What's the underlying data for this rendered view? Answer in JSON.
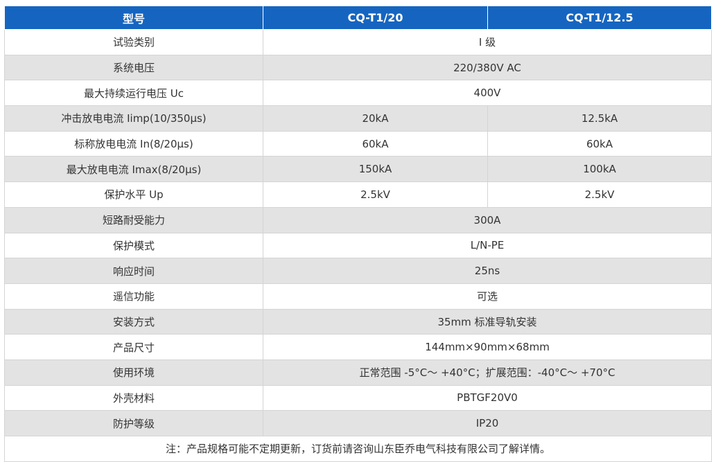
{
  "header": {
    "model": "型号",
    "variants": [
      "CQ-T1/20",
      "CQ-T1/12.5"
    ]
  },
  "rows": [
    {
      "label": "试验类别",
      "value": "I 级"
    },
    {
      "label": "系统电压",
      "value": "220/380V AC"
    },
    {
      "label": "最大持续运行电压 Uc",
      "value": "400V"
    },
    {
      "label": "冲击放电电流 Iimp(10/350μs)",
      "values": [
        "20kA",
        "12.5kA"
      ]
    },
    {
      "label": "标称放电电流 In(8/20μs)",
      "values": [
        "60kA",
        "60kA"
      ]
    },
    {
      "label": "最大放电电流 Imax(8/20μs)",
      "values": [
        "150kA",
        "100kA"
      ]
    },
    {
      "label": "保护水平 Up",
      "values": [
        "2.5kV",
        "2.5kV"
      ]
    },
    {
      "label": "短路耐受能力",
      "value": "300A"
    },
    {
      "label": "保护模式",
      "value": "L/N-PE"
    },
    {
      "label": "响应时间",
      "value": "25ns"
    },
    {
      "label": "遥信功能",
      "value": "可选"
    },
    {
      "label": "安装方式",
      "value": "35mm 标准导轨安装"
    },
    {
      "label": "产品尺寸",
      "value": "144mm×90mm×68mm"
    },
    {
      "label": "使用环境",
      "value": "正常范围 -5°C～ +40°C；扩展范围：-40°C～ +70°C"
    },
    {
      "label": "外壳材料",
      "value": "PBTGF20V0"
    },
    {
      "label": "防护等级",
      "value": "IP20"
    }
  ],
  "note": "注：产品规格可能不定期更新，订货前请咨询山东臣乔电气科技有限公司了解详情。",
  "colors": {
    "header_bg": "#1565c0",
    "alt_row_bg": "#e3e3e3",
    "text": "#333333"
  }
}
